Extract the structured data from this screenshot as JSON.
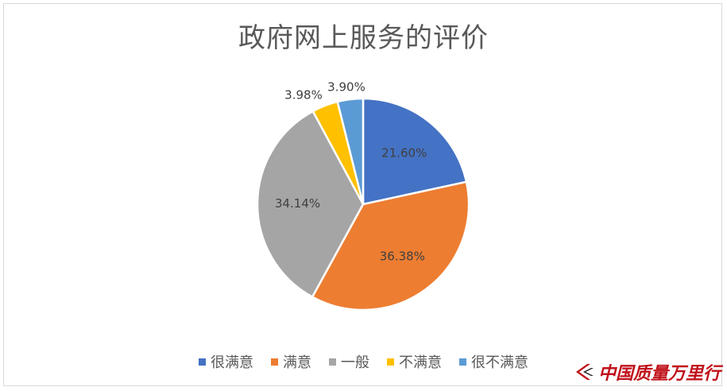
{
  "chart_data": {
    "type": "pie",
    "title": "政府网上服务的评价",
    "categories": [
      "很满意",
      "满意",
      "一般",
      "不满意",
      "很不满意"
    ],
    "values": [
      21.6,
      36.38,
      34.14,
      3.98,
      3.9
    ],
    "labels": [
      "21.60%",
      "36.38%",
      "34.14%",
      "3.98%",
      "3.90%"
    ],
    "colors": [
      "#4472c4",
      "#ed7d31",
      "#a5a5a5",
      "#ffc000",
      "#5b9bd5"
    ],
    "legend_position": "bottom"
  },
  "watermark": {
    "text": "中国质量万里行",
    "color": "#c0121b"
  }
}
